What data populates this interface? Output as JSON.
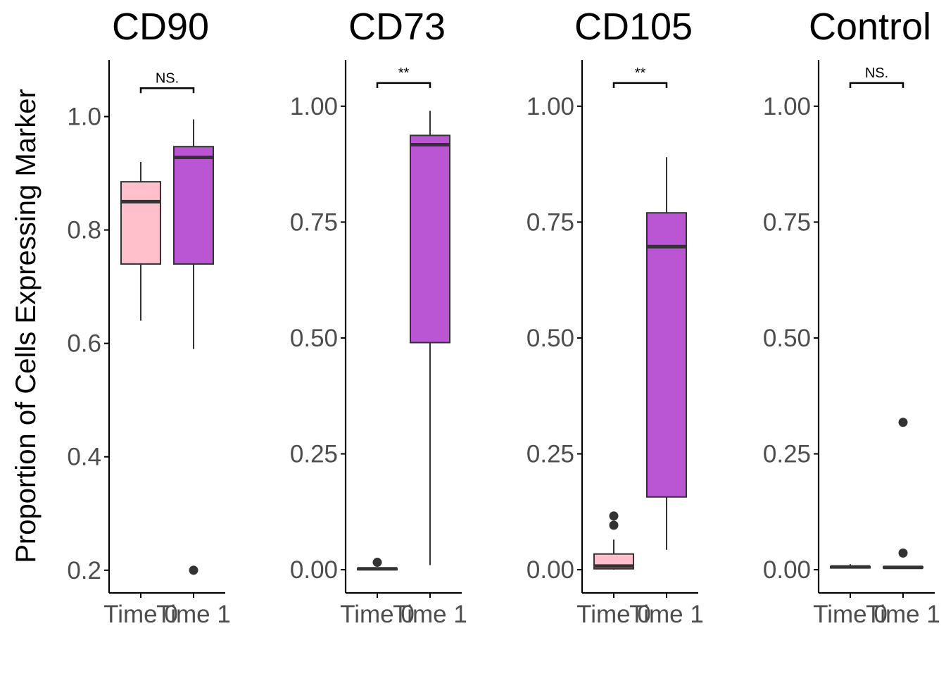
{
  "colors": {
    "time0": "#FFC0CB",
    "time1": "#BA55D3",
    "line": "#333333",
    "axis": "#000000",
    "tick_text": "#4d4d4d"
  },
  "chart_data": {
    "type": "box",
    "ylabel": "Proportion of Cells Expressing Marker",
    "categories": [
      "Time 0",
      "Time 1"
    ],
    "grid": false,
    "legend": "none",
    "panels": [
      {
        "title": "CD90",
        "ylim": [
          0.16,
          1.1
        ],
        "yticks": [
          "0.2",
          "0.4",
          "0.6",
          "0.8",
          "1.0"
        ],
        "ytick_values": [
          0.2,
          0.4,
          0.6,
          0.8,
          1.0
        ],
        "significance": "NS.",
        "bracket_y": 1.05,
        "boxes": [
          {
            "group": "Time 0",
            "whisker_low": 0.64,
            "q1": 0.74,
            "median": 0.85,
            "q3": 0.885,
            "whisker_high": 0.92,
            "outliers": []
          },
          {
            "group": "Time 1",
            "whisker_low": 0.59,
            "q1": 0.74,
            "median": 0.928,
            "q3": 0.947,
            "whisker_high": 0.995,
            "outliers": [
              0.2
            ]
          }
        ]
      },
      {
        "title": "CD73",
        "ylim": [
          -0.05,
          1.1
        ],
        "yticks": [
          "0.00",
          "0.25",
          "0.50",
          "0.75",
          "1.00"
        ],
        "ytick_values": [
          0.0,
          0.25,
          0.5,
          0.75,
          1.0
        ],
        "significance": "**",
        "bracket_y": 1.05,
        "boxes": [
          {
            "group": "Time 0",
            "whisker_low": 0.0,
            "q1": 0.0,
            "median": 0.002,
            "q3": 0.003,
            "whisker_high": 0.003,
            "outliers": [
              0.016
            ]
          },
          {
            "group": "Time 1",
            "whisker_low": 0.01,
            "q1": 0.49,
            "median": 0.917,
            "q3": 0.937,
            "whisker_high": 0.99,
            "outliers": []
          }
        ]
      },
      {
        "title": "CD105",
        "ylim": [
          -0.05,
          1.1
        ],
        "yticks": [
          "0.00",
          "0.25",
          "0.50",
          "0.75",
          "1.00"
        ],
        "ytick_values": [
          0.0,
          0.25,
          0.5,
          0.75,
          1.0
        ],
        "significance": "**",
        "bracket_y": 1.05,
        "boxes": [
          {
            "group": "Time 0",
            "whisker_low": 0.0,
            "q1": 0.002,
            "median": 0.008,
            "q3": 0.034,
            "whisker_high": 0.065,
            "outliers": [
              0.096,
              0.116
            ]
          },
          {
            "group": "Time 1",
            "whisker_low": 0.043,
            "q1": 0.157,
            "median": 0.697,
            "q3": 0.77,
            "whisker_high": 0.89,
            "outliers": []
          }
        ]
      },
      {
        "title": "Control",
        "ylim": [
          -0.05,
          1.1
        ],
        "yticks": [
          "0.00",
          "0.25",
          "0.50",
          "0.75",
          "1.00"
        ],
        "ytick_values": [
          0.0,
          0.25,
          0.5,
          0.75,
          1.0
        ],
        "significance": "NS.",
        "bracket_y": 1.05,
        "boxes": [
          {
            "group": "Time 0",
            "whisker_low": 0.003,
            "q1": 0.004,
            "median": 0.006,
            "q3": 0.007,
            "whisker_high": 0.012,
            "outliers": []
          },
          {
            "group": "Time 1",
            "whisker_low": 0.003,
            "q1": 0.004,
            "median": 0.005,
            "q3": 0.006,
            "whisker_high": 0.008,
            "outliers": [
              0.036,
              0.318
            ]
          }
        ]
      }
    ]
  }
}
